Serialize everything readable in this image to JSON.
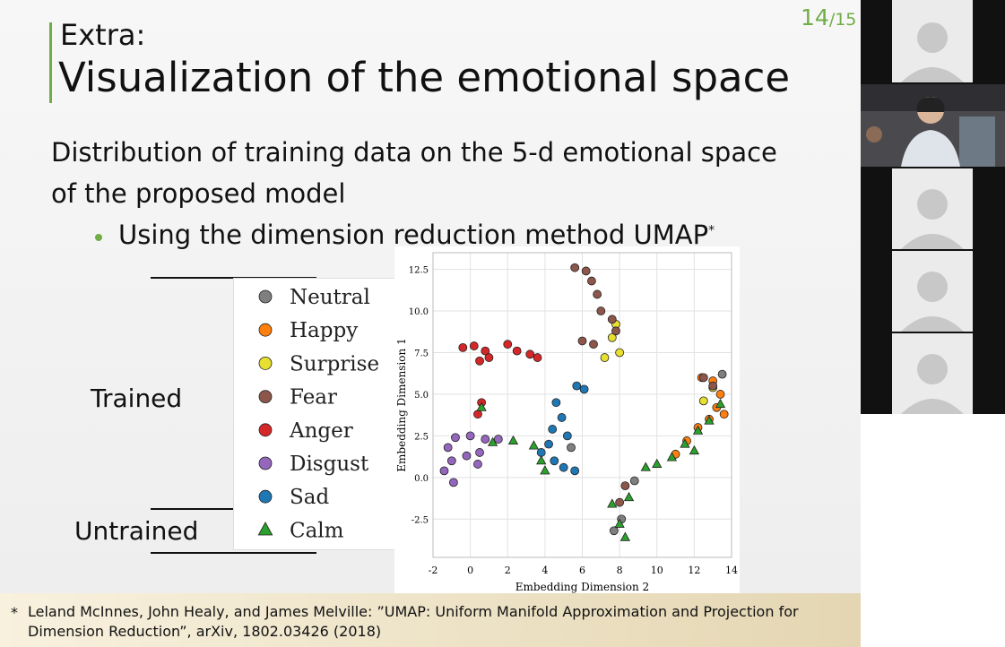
{
  "slide": {
    "page_number": "14",
    "page_total": "/15"
  },
  "header": {
    "label": "Extra:",
    "title": "Visualization of the emotional space"
  },
  "body": {
    "lines": [
      "Distribution of training data on the 5-d emotional space",
      "of the proposed model"
    ],
    "bullet": "Using the dimension reduction method UMAP",
    "bullet_mark": "*"
  },
  "groups": {
    "trained": "Trained",
    "untrained": "Untrained"
  },
  "footnote": {
    "mark": "*",
    "lines": [
      "Leland McInnes, John Healy, and James Melville: ”UMAP: Uniform Manifold Approximation and Projection for",
      "Dimension Reduction”, arXiv, 1802.03426 (2018)"
    ]
  },
  "chart_data": {
    "type": "scatter",
    "xlabel": "Embedding Dimension 2",
    "ylabel": "Embedding Dimension 1",
    "xlim": [
      -2,
      14
    ],
    "ylim": [
      -4.8,
      13.5
    ],
    "xticks": [
      -2,
      0,
      2,
      4,
      6,
      8,
      10,
      12,
      14
    ],
    "yticks": [
      -2.5,
      {
        "value": 0,
        "label": "0.0"
      },
      2.5,
      {
        "value": 5,
        "label": "5.0"
      },
      7.5,
      {
        "value": 10,
        "label": "10.0"
      },
      12.5
    ],
    "grid": true,
    "series": [
      {
        "name": "Neutral",
        "color": "#7f7f7f",
        "marker": "circle",
        "x": [
          5.4,
          13.5,
          8.8,
          8.1,
          7.7
        ],
        "y": [
          1.8,
          6.2,
          -0.2,
          -2.5,
          -3.2
        ]
      },
      {
        "name": "Happy",
        "color": "#ff7f0e",
        "marker": "circle",
        "x": [
          12.4,
          13,
          13.4,
          13.2,
          12.8,
          12.2,
          11.6,
          11,
          13.6
        ],
        "y": [
          6,
          5.8,
          5,
          4.2,
          3.5,
          3,
          2.2,
          1.4,
          3.8
        ]
      },
      {
        "name": "Surprise",
        "color": "#e8e030",
        "marker": "circle",
        "x": [
          7.6,
          8,
          7.2,
          7.8,
          13,
          12.5
        ],
        "y": [
          8.4,
          7.5,
          7.2,
          9.2,
          5.4,
          4.6
        ]
      },
      {
        "name": "Fear",
        "color": "#8c564b",
        "marker": "circle",
        "x": [
          5.6,
          6.2,
          6.5,
          6.8,
          7,
          7.6,
          7.8,
          6,
          6.6,
          12.5,
          13,
          8,
          8.3
        ],
        "y": [
          12.6,
          12.4,
          11.8,
          11,
          10,
          9.5,
          8.8,
          8.2,
          8,
          6,
          5.5,
          -1.5,
          -0.5
        ]
      },
      {
        "name": "Anger",
        "color": "#d62728",
        "marker": "circle",
        "x": [
          -0.4,
          0.2,
          0.8,
          1,
          2,
          2.5,
          3.2,
          3.6,
          0.5,
          0.6,
          0.4
        ],
        "y": [
          7.8,
          7.9,
          7.6,
          7.2,
          8,
          7.6,
          7.4,
          7.2,
          7,
          4.5,
          3.8
        ]
      },
      {
        "name": "Disgust",
        "color": "#9467bd",
        "marker": "circle",
        "x": [
          -1.2,
          -0.8,
          0,
          0.8,
          1.5,
          -1,
          -0.2,
          0.5,
          -1.4,
          -0.9,
          0.4
        ],
        "y": [
          1.8,
          2.4,
          2.5,
          2.3,
          2.3,
          1,
          1.3,
          1.5,
          0.4,
          -0.3,
          0.8
        ]
      },
      {
        "name": "Sad",
        "color": "#1f77b4",
        "marker": "circle",
        "x": [
          5.7,
          6.1,
          4.6,
          4.9,
          4.4,
          4.2,
          3.8,
          4.5,
          5,
          5.6,
          5.2
        ],
        "y": [
          5.5,
          5.3,
          4.5,
          3.6,
          2.9,
          2,
          1.5,
          1,
          0.6,
          0.4,
          2.5
        ]
      },
      {
        "name": "Calm",
        "color": "#2ca02c",
        "marker": "triangle",
        "x": [
          8.3,
          8,
          7.6,
          8.5,
          9.4,
          10,
          10.8,
          11.5,
          12.2,
          12.8,
          13.4,
          12,
          3.4,
          3.8,
          4,
          1.2,
          2.3,
          0.6
        ],
        "y": [
          -3.6,
          -2.8,
          -1.6,
          -1.2,
          0.6,
          0.8,
          1.2,
          2,
          2.8,
          3.4,
          4.4,
          1.6,
          1.9,
          1,
          0.4,
          2.1,
          2.2,
          4.2
        ]
      }
    ]
  }
}
